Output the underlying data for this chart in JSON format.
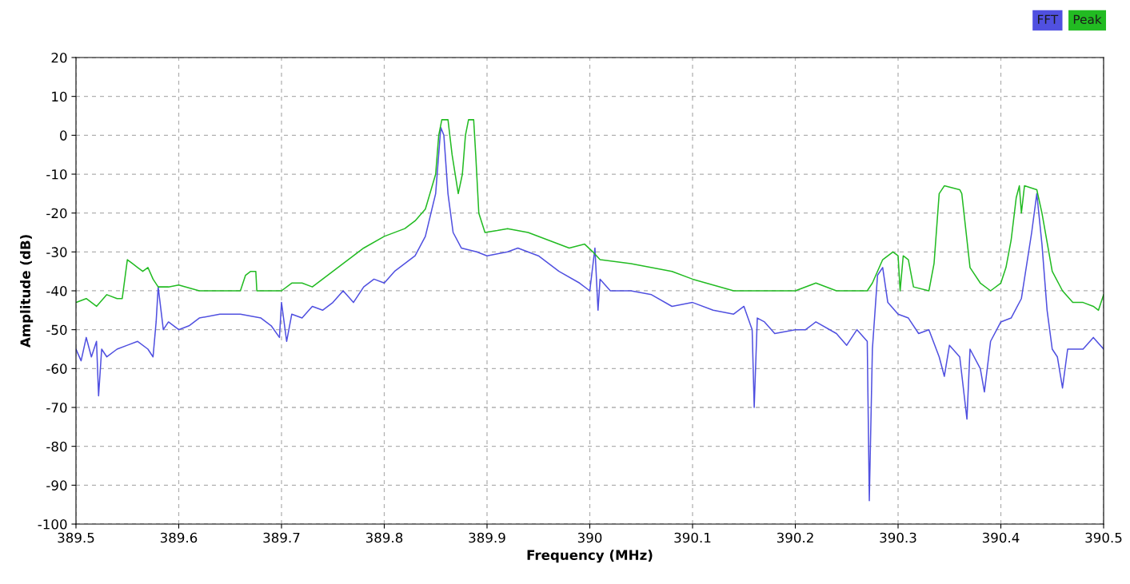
{
  "chart_data": {
    "type": "line",
    "xlabel": "Frequency (MHz)",
    "ylabel": "Amplitude (dB)",
    "xlim": [
      389.5,
      390.5
    ],
    "xticks": [
      389.5,
      389.6,
      389.7,
      389.8,
      389.9,
      390,
      390.1,
      390.2,
      390.3,
      390.4,
      390.5
    ],
    "ylim": [
      -100,
      20
    ],
    "yticks": [
      -100,
      -90,
      -80,
      -70,
      -60,
      -50,
      -40,
      -30,
      -20,
      -10,
      0,
      10,
      20
    ],
    "grid": true,
    "legend": "top right",
    "line_style": "solid",
    "marker": "none",
    "series": [
      {
        "name": "FFT",
        "color": "#5050e0",
        "x": [
          389.5,
          389.505,
          389.51,
          389.515,
          389.52,
          389.522,
          389.525,
          389.53,
          389.54,
          389.55,
          389.56,
          389.57,
          389.575,
          389.578,
          389.58,
          389.585,
          389.59,
          389.6,
          389.61,
          389.62,
          389.64,
          389.66,
          389.68,
          389.69,
          389.698,
          389.7,
          389.705,
          389.71,
          389.72,
          389.73,
          389.74,
          389.75,
          389.76,
          389.77,
          389.78,
          389.79,
          389.8,
          389.81,
          389.82,
          389.83,
          389.84,
          389.85,
          389.855,
          389.858,
          389.862,
          389.867,
          389.875,
          389.89,
          389.9,
          389.92,
          389.93,
          389.95,
          389.97,
          389.99,
          390.0,
          390.005,
          390.008,
          390.01,
          390.02,
          390.04,
          390.06,
          390.08,
          390.1,
          390.12,
          390.14,
          390.15,
          390.158,
          390.16,
          390.163,
          390.17,
          390.18,
          390.2,
          390.21,
          390.22,
          390.24,
          390.25,
          390.26,
          390.27,
          390.272,
          390.275,
          390.28,
          390.285,
          390.29,
          390.3,
          390.31,
          390.32,
          390.33,
          390.34,
          390.345,
          390.35,
          390.36,
          390.367,
          390.37,
          390.38,
          390.384,
          390.39,
          390.4,
          390.41,
          390.42,
          390.43,
          390.435,
          390.44,
          390.445,
          390.45,
          390.455,
          390.46,
          390.465,
          390.48,
          390.49,
          390.5
        ],
        "values": [
          -55,
          -58,
          -52,
          -57,
          -53,
          -67,
          -55,
          -57,
          -55,
          -54,
          -53,
          -55,
          -57,
          -48,
          -39,
          -50,
          -48,
          -50,
          -49,
          -47,
          -46,
          -46,
          -47,
          -49,
          -52,
          -43,
          -53,
          -46,
          -47,
          -44,
          -45,
          -43,
          -40,
          -43,
          -39,
          -37,
          -38,
          -35,
          -33,
          -31,
          -26,
          -15,
          2,
          0,
          -15,
          -25,
          -29,
          -30,
          -31,
          -30,
          -29,
          -31,
          -35,
          -38,
          -40,
          -29,
          -45,
          -37,
          -40,
          -40,
          -41,
          -44,
          -43,
          -45,
          -46,
          -44,
          -50,
          -70,
          -47,
          -48,
          -51,
          -50,
          -50,
          -48,
          -51,
          -54,
          -50,
          -53,
          -94,
          -55,
          -36,
          -34,
          -43,
          -46,
          -47,
          -51,
          -50,
          -57,
          -62,
          -54,
          -57,
          -73,
          -55,
          -60,
          -66,
          -53,
          -48,
          -47,
          -42,
          -25,
          -15,
          -28,
          -45,
          -55,
          -57,
          -65,
          -55,
          -55,
          -52,
          -55
        ]
      },
      {
        "name": "Peak",
        "color": "#22bb22",
        "x": [
          389.5,
          389.51,
          389.52,
          389.53,
          389.54,
          389.545,
          389.55,
          389.555,
          389.56,
          389.565,
          389.57,
          389.575,
          389.58,
          389.59,
          389.6,
          389.62,
          389.64,
          389.66,
          389.665,
          389.67,
          389.675,
          389.676,
          389.69,
          389.7,
          389.71,
          389.72,
          389.73,
          389.74,
          389.76,
          389.78,
          389.8,
          389.82,
          389.83,
          389.84,
          389.85,
          389.853,
          389.856,
          389.862,
          389.866,
          389.872,
          389.876,
          389.879,
          389.882,
          389.887,
          389.889,
          389.892,
          389.898,
          389.91,
          389.92,
          389.94,
          389.96,
          389.98,
          389.995,
          390.003,
          390.01,
          390.04,
          390.08,
          390.1,
          390.12,
          390.14,
          390.16,
          390.18,
          390.2,
          390.22,
          390.24,
          390.26,
          390.27,
          390.275,
          390.285,
          390.295,
          390.3,
          390.302,
          390.305,
          390.31,
          390.315,
          390.33,
          390.335,
          390.34,
          390.345,
          390.36,
          390.362,
          390.37,
          390.38,
          390.39,
          390.4,
          390.405,
          390.41,
          390.415,
          390.418,
          390.42,
          390.423,
          390.435,
          390.44,
          390.45,
          390.46,
          390.47,
          390.48,
          390.49,
          390.495,
          390.5
        ],
        "values": [
          -43,
          -42,
          -44,
          -41,
          -42,
          -42,
          -32,
          -33,
          -34,
          -35,
          -34,
          -37,
          -39,
          -39,
          -38.5,
          -40,
          -40,
          -40,
          -36,
          -35,
          -35,
          -40,
          -40,
          -40,
          -38,
          -38,
          -39,
          -37,
          -33,
          -29,
          -26,
          -24,
          -22,
          -19,
          -10,
          0,
          4,
          4,
          -5,
          -15,
          -10,
          0,
          4,
          4,
          -5,
          -20,
          -25,
          -24.5,
          -24,
          -25,
          -27,
          -29,
          -28,
          -30,
          -32,
          -33,
          -35,
          -37,
          -38.5,
          -40,
          -40,
          -40,
          -40,
          -38,
          -40,
          -40,
          -40,
          -38,
          -32,
          -30,
          -31,
          -40,
          -31,
          -32,
          -39,
          -40,
          -33,
          -15,
          -13,
          -14,
          -15,
          -34,
          -38,
          -40,
          -38,
          -34,
          -27,
          -16,
          -13,
          -20,
          -13,
          -14,
          -20,
          -35,
          -40,
          -43,
          -43,
          -44,
          -45,
          -41
        ]
      }
    ]
  }
}
